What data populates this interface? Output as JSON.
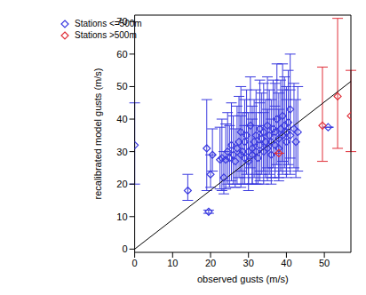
{
  "chart_data": {
    "type": "scatter",
    "x_label": "observed gusts (m/s)",
    "y_label": "recalibrated model gusts (m/s)",
    "xlim": [
      0,
      57
    ],
    "ylim": [
      -1,
      72
    ],
    "xticks": [
      0,
      10,
      20,
      30,
      40,
      50
    ],
    "yticks": [
      0,
      10,
      20,
      30,
      40,
      50,
      60,
      70
    ],
    "legend": "upper left",
    "line": {
      "x": [
        0,
        57
      ],
      "y": [
        0,
        51.6
      ],
      "color": "#000000"
    },
    "series": [
      {
        "name": "Stations <=500m",
        "color": "#3a3adf",
        "marker": "diamond",
        "x": [
          0,
          14,
          19,
          19.5,
          20,
          20.5,
          22.5,
          23,
          23.5,
          24,
          24.5,
          25,
          25.5,
          26,
          26.5,
          27,
          27.5,
          28,
          28,
          28.5,
          29,
          29,
          29.5,
          30,
          30,
          30.5,
          31,
          31,
          31.5,
          32,
          32,
          32.5,
          33,
          33,
          33.5,
          34,
          34,
          34.5,
          35,
          35,
          35.5,
          36,
          36,
          36.5,
          37,
          37,
          37.5,
          38,
          38,
          38.5,
          39,
          39,
          39.5,
          40,
          40,
          40.5,
          41,
          41,
          42,
          42.5,
          43,
          51
        ],
        "values": [
          32,
          18,
          31,
          11.5,
          23,
          29,
          27.5,
          28,
          22,
          27.5,
          30,
          28,
          32,
          29,
          27,
          31,
          33,
          29,
          36,
          30,
          33,
          28,
          35,
          30,
          27,
          38,
          31,
          29,
          33,
          35,
          30,
          28,
          37,
          32,
          34,
          30,
          36,
          33,
          38,
          31,
          35,
          33,
          29,
          37,
          36,
          32,
          40,
          34,
          31,
          37,
          35,
          41,
          38,
          36,
          33,
          39,
          43,
          35,
          37,
          33,
          36,
          37.5
        ],
        "errors": [
          [
            12,
            13
          ],
          [
            3,
            5
          ],
          [
            13,
            15
          ],
          [
            0.5,
            0.5
          ],
          [
            4,
            6
          ],
          [
            5,
            8
          ],
          [
            9,
            10
          ],
          [
            10,
            12
          ],
          [
            5,
            8
          ],
          [
            9,
            11
          ],
          [
            10,
            12
          ],
          [
            9,
            10
          ],
          [
            11,
            13
          ],
          [
            9,
            12
          ],
          [
            8,
            10
          ],
          [
            11,
            13
          ],
          [
            11,
            14
          ],
          [
            10,
            12
          ],
          [
            12,
            14
          ],
          [
            10,
            12
          ],
          [
            11,
            13
          ],
          [
            8,
            10
          ],
          [
            12,
            14
          ],
          [
            10,
            12
          ],
          [
            9,
            11
          ],
          [
            13,
            15
          ],
          [
            11,
            13
          ],
          [
            9,
            11
          ],
          [
            11,
            13
          ],
          [
            12,
            14
          ],
          [
            10,
            12
          ],
          [
            8,
            10
          ],
          [
            13,
            15
          ],
          [
            11,
            13
          ],
          [
            11,
            14
          ],
          [
            10,
            12
          ],
          [
            12,
            15
          ],
          [
            11,
            13
          ],
          [
            13,
            15
          ],
          [
            10,
            12
          ],
          [
            12,
            14
          ],
          [
            11,
            13
          ],
          [
            9,
            11
          ],
          [
            12,
            15
          ],
          [
            12,
            15
          ],
          [
            10,
            12
          ],
          [
            14,
            17
          ],
          [
            12,
            14
          ],
          [
            10,
            12
          ],
          [
            13,
            15
          ],
          [
            12,
            14
          ],
          [
            14,
            16
          ],
          [
            13,
            15
          ],
          [
            12,
            14
          ],
          [
            11,
            13
          ],
          [
            13,
            16
          ],
          [
            15,
            17
          ],
          [
            12,
            14
          ],
          [
            12,
            14
          ],
          [
            11,
            13
          ],
          [
            12,
            14
          ],
          [
            0,
            0
          ]
        ]
      },
      {
        "name": "Stations >500m",
        "color": "#e0303a",
        "marker": "diamond",
        "x": [
          38,
          49.5,
          53.5,
          57
        ],
        "values": [
          29.5,
          38,
          47,
          41
        ],
        "errors": [
          [
            0,
            0
          ],
          [
            11,
            18
          ],
          [
            16,
            24
          ],
          [
            11,
            14
          ]
        ]
      }
    ]
  }
}
